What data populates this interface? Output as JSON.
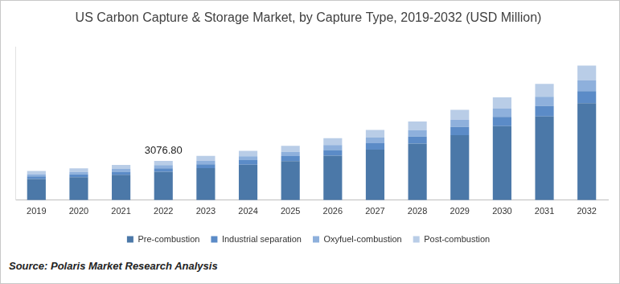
{
  "chart_data": {
    "type": "bar",
    "title": "US Carbon Capture & Storage Market, by Capture Type, 2019-2032 (USD Million)",
    "categories": [
      "2019",
      "2020",
      "2021",
      "2022",
      "2023",
      "2024",
      "2025",
      "2026",
      "2027",
      "2028",
      "2029",
      "2030",
      "2031",
      "2032"
    ],
    "series": [
      {
        "name": "Pre-combustion",
        "color": "#4b78a8",
        "values": [
          1650,
          1790,
          1980,
          2215,
          2498,
          2781,
          3064,
          3488,
          3959,
          4430,
          5090,
          5797,
          6551,
          7588
        ]
      },
      {
        "name": "Industrial separation",
        "color": "#5b8bc7",
        "values": [
          206,
          224,
          248,
          277,
          312,
          348,
          383,
          436,
          495,
          554,
          636,
          725,
          819,
          949
        ]
      },
      {
        "name": "Oxyfuel-combustion",
        "color": "#8eb0dc",
        "values": [
          183,
          199,
          220,
          246,
          278,
          309,
          340,
          388,
          440,
          492,
          566,
          644,
          728,
          843
        ]
      },
      {
        "name": "Post-combustion",
        "color": "#b9cde7",
        "values": [
          252,
          274,
          302,
          338.8,
          381,
          424,
          468,
          532,
          605,
          677,
          778,
          886,
          1001,
          1159
        ]
      }
    ],
    "stacked": true,
    "ylim": [
      0,
      12000
    ],
    "grid": false,
    "legend": "bottom",
    "tick_labels": "x",
    "annotations": [
      {
        "text": "3076.80",
        "x": "2022",
        "y": 3076.8
      }
    ],
    "source": "Source: Polaris Market Research Analysis"
  }
}
